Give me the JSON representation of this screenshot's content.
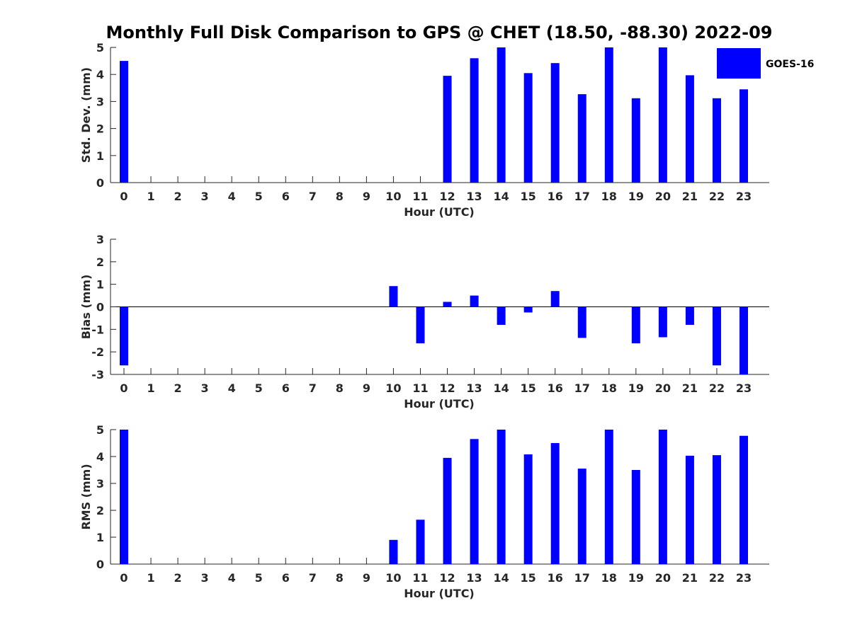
{
  "title": "Monthly Full Disk Comparison to GPS @ CHET (18.50, -88.30) 2022-09",
  "legend": {
    "label": "GOES-16",
    "color": "#0000ff",
    "placement": "top-right"
  },
  "chart_data": [
    {
      "type": "bar",
      "xlabel": "Hour (UTC)",
      "ylabel": "Std. Dev. (mm)",
      "ylim": [
        0,
        5
      ],
      "yticks": [
        "0",
        "1",
        "2",
        "3",
        "4",
        "5"
      ],
      "categories": [
        "0",
        "1",
        "2",
        "3",
        "4",
        "5",
        "6",
        "7",
        "8",
        "9",
        "10",
        "11",
        "12",
        "13",
        "14",
        "15",
        "16",
        "17",
        "18",
        "19",
        "20",
        "21",
        "22",
        "23"
      ],
      "series": [
        {
          "name": "GOES-16",
          "color": "#0000ff",
          "values": [
            4.5,
            null,
            null,
            null,
            null,
            null,
            null,
            null,
            null,
            null,
            null,
            null,
            3.95,
            4.6,
            5.0,
            4.05,
            4.42,
            3.27,
            5.0,
            3.12,
            5.0,
            3.97,
            3.12,
            3.45
          ]
        }
      ]
    },
    {
      "type": "bar",
      "xlabel": "Hour (UTC)",
      "ylabel": "Bias (mm)",
      "ylim": [
        -3,
        3
      ],
      "yticks": [
        "-3",
        "-2",
        "-1",
        "0",
        "1",
        "2",
        "3"
      ],
      "categories": [
        "0",
        "1",
        "2",
        "3",
        "4",
        "5",
        "6",
        "7",
        "8",
        "9",
        "10",
        "11",
        "12",
        "13",
        "14",
        "15",
        "16",
        "17",
        "18",
        "19",
        "20",
        "21",
        "22",
        "23"
      ],
      "series": [
        {
          "name": "GOES-16",
          "color": "#0000ff",
          "values": [
            -2.6,
            null,
            null,
            null,
            null,
            null,
            null,
            null,
            null,
            null,
            0.92,
            -1.62,
            0.22,
            0.5,
            -0.8,
            -0.25,
            0.7,
            -1.38,
            0.0,
            -1.62,
            -1.35,
            -0.8,
            -2.6,
            -3.0
          ]
        }
      ]
    },
    {
      "type": "bar",
      "xlabel": "Hour (UTC)",
      "ylabel": "RMS (mm)",
      "ylim": [
        0,
        5
      ],
      "yticks": [
        "0",
        "1",
        "2",
        "3",
        "4",
        "5"
      ],
      "categories": [
        "0",
        "1",
        "2",
        "3",
        "4",
        "5",
        "6",
        "7",
        "8",
        "9",
        "10",
        "11",
        "12",
        "13",
        "14",
        "15",
        "16",
        "17",
        "18",
        "19",
        "20",
        "21",
        "22",
        "23"
      ],
      "series": [
        {
          "name": "GOES-16",
          "color": "#0000ff",
          "values": [
            5.0,
            null,
            null,
            null,
            null,
            null,
            null,
            null,
            null,
            null,
            0.9,
            1.65,
            3.95,
            4.65,
            5.0,
            4.08,
            4.5,
            3.55,
            5.0,
            3.5,
            5.0,
            4.03,
            4.05,
            4.77
          ]
        }
      ]
    }
  ]
}
